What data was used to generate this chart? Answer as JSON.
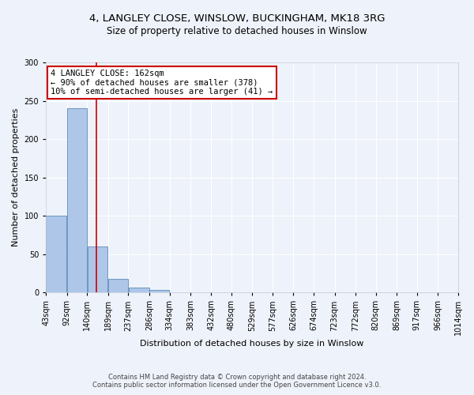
{
  "title1": "4, LANGLEY CLOSE, WINSLOW, BUCKINGHAM, MK18 3RG",
  "title2": "Size of property relative to detached houses in Winslow",
  "xlabel": "Distribution of detached houses by size in Winslow",
  "ylabel": "Number of detached properties",
  "footnote1": "Contains HM Land Registry data © Crown copyright and database right 2024.",
  "footnote2": "Contains public sector information licensed under the Open Government Licence v3.0.",
  "annotation_line1": "4 LANGLEY CLOSE: 162sqm",
  "annotation_line2": "← 90% of detached houses are smaller (378)",
  "annotation_line3": "10% of semi-detached houses are larger (41) →",
  "bar_edges": [
    43,
    92,
    140,
    189,
    237,
    286,
    334,
    383,
    432,
    480,
    529,
    577,
    626,
    674,
    723,
    772,
    820,
    869,
    917,
    966,
    1014
  ],
  "bar_values": [
    100,
    240,
    60,
    18,
    6,
    3,
    0,
    0,
    0,
    0,
    0,
    0,
    0,
    0,
    0,
    0,
    0,
    0,
    0,
    0
  ],
  "bar_color": "#aec6e8",
  "bar_edge_color": "#5b8db8",
  "red_line_x": 162,
  "ylim": [
    0,
    300
  ],
  "yticks": [
    0,
    50,
    100,
    150,
    200,
    250,
    300
  ],
  "background_color": "#eef2fa",
  "grid_color": "#ffffff",
  "annotation_box_color": "#ffffff",
  "annotation_box_edge": "#cc0000",
  "red_line_color": "#cc0000",
  "title_fontsize": 9.5,
  "subtitle_fontsize": 8.5,
  "tick_fontsize": 7,
  "label_fontsize": 8,
  "footnote_fontsize": 6,
  "annotation_fontsize": 7.5
}
